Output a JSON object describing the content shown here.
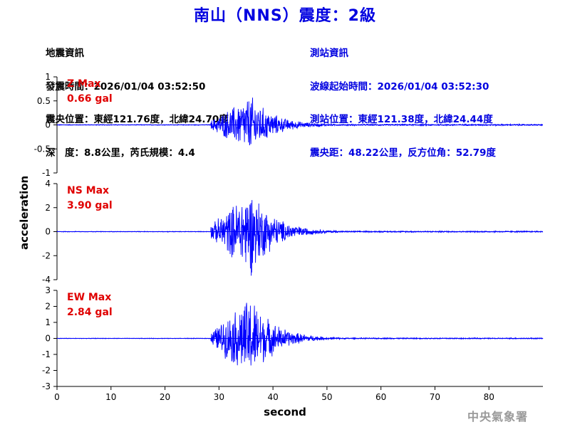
{
  "header": {
    "title": "南山（NNS）震度：2級"
  },
  "quake_info": {
    "heading": "地震資訊",
    "origin_time": "發震時間：2026/01/04 03:52:50",
    "epicenter": "震央位置：東經121.76度，北緯24.70度",
    "depth_magnitude": "深　度：8.8公里，芮氏規模：4.4"
  },
  "station_info": {
    "heading": "測站資訊",
    "wave_start": "波線起始時間：2026/01/04 03:52:30",
    "station_location": "測站位置：東經121.38度，北緯24.44度",
    "distance_azimuth": "震央距：48.22公里，反方位角：52.79度"
  },
  "agency": "中央氣象署",
  "colors": {
    "trace": "#0000ff",
    "title": "#0000e0",
    "max_label": "#e00000"
  },
  "chart_data": [
    {
      "type": "line",
      "component": "Z",
      "max_label": "Z Max",
      "max_value": "0.66 gal",
      "ylabel": "acceleration",
      "xlabel": "second",
      "ylim": [
        -1,
        1
      ],
      "yticks": [
        "1",
        "0.5",
        "0",
        "-0.5",
        "-1"
      ],
      "xlim": [
        0,
        90
      ],
      "xticks": [
        "0",
        "10",
        "20",
        "30",
        "40",
        "50",
        "60",
        "70",
        "80"
      ],
      "peak": 0.66,
      "envelope": {
        "onset_s": 28.5,
        "peak_s": 36,
        "noise": 0.008
      }
    },
    {
      "type": "line",
      "component": "NS",
      "max_label": "NS Max",
      "max_value": "3.90 gal",
      "ylabel": "acceleration",
      "xlabel": "second",
      "ylim": [
        -4,
        4
      ],
      "yticks": [
        "4",
        "2",
        "0",
        "-2",
        "-4"
      ],
      "xlim": [
        0,
        90
      ],
      "xticks": [
        "0",
        "10",
        "20",
        "30",
        "40",
        "50",
        "60",
        "70",
        "80"
      ],
      "peak": 3.9,
      "envelope": {
        "onset_s": 28.5,
        "peak_s": 36,
        "noise": 0.03
      }
    },
    {
      "type": "line",
      "component": "EW",
      "max_label": "EW Max",
      "max_value": "2.84 gal",
      "ylabel": "acceleration",
      "xlabel": "second",
      "ylim": [
        -3,
        3
      ],
      "yticks": [
        "3",
        "2",
        "1",
        "0",
        "-1",
        "-2",
        "-3"
      ],
      "xlim": [
        0,
        90
      ],
      "xticks": [
        "0",
        "10",
        "20",
        "30",
        "40",
        "50",
        "60",
        "70",
        "80"
      ],
      "peak": 2.84,
      "envelope": {
        "onset_s": 28.5,
        "peak_s": 36,
        "noise": 0.02
      }
    }
  ]
}
